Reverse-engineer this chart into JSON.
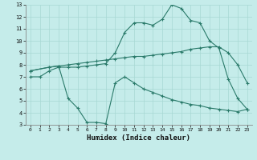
{
  "xlabel": "Humidex (Indice chaleur)",
  "bg_color": "#c5ecea",
  "grid_color": "#a8d8d4",
  "line_color": "#2a7a6a",
  "xlim": [
    -0.5,
    23.5
  ],
  "ylim": [
    3,
    13
  ],
  "xticks": [
    0,
    1,
    2,
    3,
    4,
    5,
    6,
    7,
    8,
    9,
    10,
    11,
    12,
    13,
    14,
    15,
    16,
    17,
    18,
    19,
    20,
    21,
    22,
    23
  ],
  "yticks": [
    3,
    4,
    5,
    6,
    7,
    8,
    9,
    10,
    11,
    12,
    13
  ],
  "curve1_x": [
    0,
    1,
    2,
    3,
    4,
    5,
    6,
    7,
    8,
    9,
    10,
    11,
    12,
    13,
    14,
    15,
    16,
    17,
    18,
    19,
    20,
    21,
    22,
    23
  ],
  "curve1_y": [
    7.0,
    7.0,
    7.5,
    7.8,
    7.8,
    7.8,
    7.9,
    8.0,
    8.1,
    9.0,
    10.7,
    11.5,
    11.5,
    11.3,
    11.8,
    13.0,
    12.7,
    11.7,
    11.5,
    10.0,
    9.4,
    6.8,
    5.2,
    4.3
  ],
  "curve2_x": [
    0,
    2,
    3,
    4,
    5,
    6,
    7,
    8,
    9,
    10,
    11,
    12,
    13,
    14,
    15,
    16,
    17,
    18,
    19,
    20,
    21,
    22,
    23
  ],
  "curve2_y": [
    7.5,
    7.8,
    7.9,
    8.0,
    8.1,
    8.2,
    8.3,
    8.4,
    8.5,
    8.6,
    8.7,
    8.7,
    8.8,
    8.9,
    9.0,
    9.1,
    9.3,
    9.4,
    9.5,
    9.5,
    9.0,
    8.0,
    6.5
  ],
  "curve3_x": [
    0,
    2,
    3,
    4,
    5,
    6,
    7,
    8,
    9,
    10,
    11,
    12,
    13,
    14,
    15,
    16,
    17,
    18,
    19,
    20,
    21,
    22,
    23
  ],
  "curve3_y": [
    7.5,
    7.8,
    7.9,
    5.2,
    4.4,
    3.2,
    3.2,
    3.1,
    6.5,
    7.0,
    6.5,
    6.0,
    5.7,
    5.4,
    5.1,
    4.9,
    4.7,
    4.6,
    4.4,
    4.3,
    4.2,
    4.1,
    4.3
  ]
}
